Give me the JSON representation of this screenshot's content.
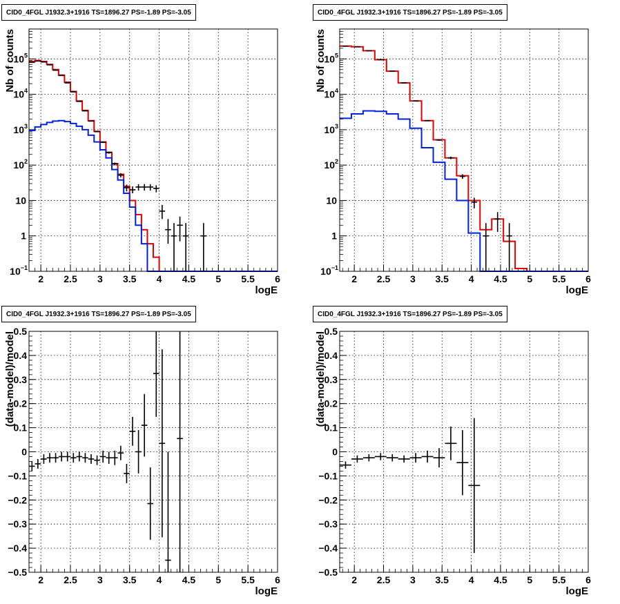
{
  "chart_data": [
    {
      "type": "line",
      "title": "CID0_4FGL J1932.3+1916 TS=1896.27 PS=-1.89 PS=-3.05",
      "xlabel": "logE",
      "ylabel": "Nb of counts",
      "xlim": [
        1.8,
        6.0
      ],
      "ylim": [
        0.1,
        700000
      ],
      "yscale": "log",
      "grid": true,
      "x_ticks": [
        "2",
        "2.5",
        "3",
        "3.5",
        "4",
        "4.5",
        "5",
        "5.5",
        "6"
      ],
      "y_ticks": [
        {
          "value": 0.1,
          "label": "10",
          "sup": "−1"
        },
        {
          "value": 1,
          "label": "1",
          "sup": ""
        },
        {
          "value": 10,
          "label": "10",
          "sup": ""
        },
        {
          "value": 100,
          "label": "10",
          "sup": "2"
        },
        {
          "value": 1000,
          "label": "10",
          "sup": "3"
        },
        {
          "value": 10000,
          "label": "10",
          "sup": "4"
        },
        {
          "value": 100000,
          "label": "10",
          "sup": "5"
        }
      ],
      "bin_edges": [
        1.8,
        1.9,
        2.0,
        2.1,
        2.2,
        2.3,
        2.4,
        2.5,
        2.6,
        2.7,
        2.8,
        2.9,
        3.0,
        3.1,
        3.2,
        3.3,
        3.4,
        3.5,
        3.6,
        3.7,
        3.8,
        3.9,
        4.0,
        4.1,
        4.2,
        4.3,
        4.4,
        4.5,
        4.6,
        4.7,
        4.8,
        4.9,
        5.0,
        5.1,
        5.2,
        5.3,
        5.4,
        5.5,
        5.6,
        5.7,
        5.8,
        5.9,
        6.0
      ],
      "series": [
        {
          "color": "#e00000",
          "style": "step",
          "values": [
            85000,
            90000,
            85000,
            70000,
            50000,
            35000,
            22000,
            12000,
            6500,
            3500,
            1800,
            900,
            450,
            230,
            110,
            55,
            25,
            10,
            4,
            1.5,
            0.6,
            0.25,
            0.1,
            0.1,
            0.1,
            0.1,
            0.1,
            0.1,
            0.1,
            0.1,
            0.1,
            0.1,
            0.1,
            0.1,
            0.1,
            0.1,
            0.1,
            0.1,
            0.1,
            0.1,
            0.1,
            0.1
          ]
        },
        {
          "color": "#0020e0",
          "style": "step",
          "values": [
            950,
            1200,
            1400,
            1600,
            1750,
            1800,
            1700,
            1500,
            1250,
            1000,
            700,
            450,
            270,
            160,
            75,
            38,
            16,
            6.5,
            2,
            0.6,
            0.1,
            0.1,
            0.1,
            0.1,
            0.1,
            0.1,
            0.1,
            0.1,
            0.1,
            0.1,
            0.1,
            0.1,
            0.1,
            0.1,
            0.1,
            0.1,
            0.1,
            0.1,
            0.1,
            0.1,
            0.1,
            0.1
          ]
        }
      ],
      "data_points": [
        {
          "x": 1.85,
          "y": 80000,
          "lo": 79700,
          "hi": 80300
        },
        {
          "x": 1.95,
          "y": 87000,
          "lo": 86700,
          "hi": 87300
        },
        {
          "x": 2.05,
          "y": 82000,
          "lo": 81700,
          "hi": 82300
        },
        {
          "x": 2.15,
          "y": 68000,
          "lo": 67700,
          "hi": 68300
        },
        {
          "x": 2.25,
          "y": 48000,
          "lo": 47800,
          "hi": 48200
        },
        {
          "x": 2.35,
          "y": 34000,
          "lo": 33800,
          "hi": 34200
        },
        {
          "x": 2.45,
          "y": 21000,
          "lo": 20850,
          "hi": 21150
        },
        {
          "x": 2.55,
          "y": 11700,
          "lo": 11600,
          "hi": 11800
        },
        {
          "x": 2.65,
          "y": 6300,
          "lo": 6220,
          "hi": 6380
        },
        {
          "x": 2.75,
          "y": 3400,
          "lo": 3340,
          "hi": 3460
        },
        {
          "x": 2.85,
          "y": 1750,
          "lo": 1710,
          "hi": 1790
        },
        {
          "x": 2.95,
          "y": 880,
          "lo": 850,
          "hi": 910
        },
        {
          "x": 3.05,
          "y": 440,
          "lo": 420,
          "hi": 460
        },
        {
          "x": 3.15,
          "y": 225,
          "lo": 210,
          "hi": 240
        },
        {
          "x": 3.25,
          "y": 108,
          "lo": 98,
          "hi": 118
        },
        {
          "x": 3.35,
          "y": 52,
          "lo": 45,
          "hi": 59
        },
        {
          "x": 3.45,
          "y": 23,
          "lo": 18,
          "hi": 28
        },
        {
          "x": 3.55,
          "y": 20,
          "lo": 16,
          "hi": 25
        },
        {
          "x": 3.65,
          "y": 24,
          "lo": 19,
          "hi": 29
        },
        {
          "x": 3.75,
          "y": 24,
          "lo": 19,
          "hi": 29
        },
        {
          "x": 3.85,
          "y": 24,
          "lo": 19,
          "hi": 29
        },
        {
          "x": 3.95,
          "y": 22,
          "lo": 17,
          "hi": 27
        },
        {
          "x": 4.05,
          "y": 5,
          "lo": 3,
          "hi": 7.5
        },
        {
          "x": 4.15,
          "y": 1.5,
          "lo": 0.6,
          "hi": 3
        },
        {
          "x": 4.25,
          "y": 1,
          "lo": 0.1,
          "hi": 2.3
        },
        {
          "x": 4.35,
          "y": 2,
          "lo": 0.7,
          "hi": 3.5
        },
        {
          "x": 4.45,
          "y": 1,
          "lo": 0.1,
          "hi": 2.3
        },
        {
          "x": 4.75,
          "y": 1,
          "lo": 0.1,
          "hi": 2.3
        }
      ]
    },
    {
      "type": "line",
      "title": "CID0_4FGL J1932.3+1916 TS=1896.27 PS=-1.89 PS=-3.05",
      "xlabel": "logE",
      "ylabel": "Nb of counts",
      "xlim": [
        1.75,
        6.0
      ],
      "ylim": [
        0.1,
        700000
      ],
      "yscale": "log",
      "grid": true,
      "x_ticks": [
        "2",
        "2.5",
        "3",
        "3.5",
        "4",
        "4.5",
        "5",
        "5.5",
        "6"
      ],
      "y_ticks": [
        {
          "value": 0.1,
          "label": "10",
          "sup": "−1"
        },
        {
          "value": 1,
          "label": "1",
          "sup": ""
        },
        {
          "value": 10,
          "label": "10",
          "sup": ""
        },
        {
          "value": 100,
          "label": "10",
          "sup": "2"
        },
        {
          "value": 1000,
          "label": "10",
          "sup": "3"
        },
        {
          "value": 10000,
          "label": "10",
          "sup": "4"
        },
        {
          "value": 100000,
          "label": "10",
          "sup": "5"
        }
      ],
      "bin_edges": [
        1.75,
        1.95,
        2.15,
        2.35,
        2.55,
        2.75,
        2.95,
        3.15,
        3.35,
        3.55,
        3.75,
        3.95,
        4.15,
        4.35,
        4.55,
        4.75,
        4.95,
        5.15,
        5.35,
        5.55,
        5.75,
        6.0
      ],
      "series": [
        {
          "color": "#e00000",
          "style": "step",
          "values": [
            230000,
            220000,
            170000,
            95000,
            45000,
            21000,
            6500,
            1800,
            520,
            160,
            50,
            10,
            1.5,
            3,
            0.7,
            0.12,
            0.1,
            0.1,
            0.1,
            0.1,
            0.1
          ]
        },
        {
          "color": "#0020e0",
          "style": "step",
          "values": [
            2100,
            2800,
            3400,
            3300,
            2800,
            2000,
            1100,
            310,
            120,
            40,
            10,
            1.2,
            0.1,
            0.1,
            0.1,
            0.1,
            0.1,
            0.1,
            0.1,
            0.1,
            0.1
          ]
        }
      ],
      "data_points": [
        {
          "x": 1.85,
          "y": 230000,
          "lo": 229500,
          "hi": 230500
        },
        {
          "x": 2.05,
          "y": 220000,
          "lo": 219500,
          "hi": 220500
        },
        {
          "x": 2.25,
          "y": 170000,
          "lo": 169500,
          "hi": 170500
        },
        {
          "x": 2.45,
          "y": 95000,
          "lo": 94700,
          "hi": 95300
        },
        {
          "x": 2.65,
          "y": 45000,
          "lo": 44800,
          "hi": 45200
        },
        {
          "x": 2.85,
          "y": 21000,
          "lo": 20850,
          "hi": 21150
        },
        {
          "x": 3.05,
          "y": 6500,
          "lo": 6420,
          "hi": 6580
        },
        {
          "x": 3.25,
          "y": 1800,
          "lo": 1760,
          "hi": 1840
        },
        {
          "x": 3.45,
          "y": 510,
          "lo": 487,
          "hi": 533
        },
        {
          "x": 3.65,
          "y": 160,
          "lo": 147,
          "hi": 173
        },
        {
          "x": 3.85,
          "y": 48,
          "lo": 41,
          "hi": 55
        },
        {
          "x": 4.05,
          "y": 9,
          "lo": 6,
          "hi": 12
        },
        {
          "x": 4.25,
          "y": 1,
          "lo": 0.1,
          "hi": 2.3
        },
        {
          "x": 4.45,
          "y": 3,
          "lo": 1.3,
          "hi": 4.7
        },
        {
          "x": 4.65,
          "y": 1,
          "lo": 0.1,
          "hi": 2.3
        }
      ]
    },
    {
      "type": "scatter",
      "title": "CID0_4FGL J1932.3+1916 TS=1896.27 PS=-1.89 PS=-3.05",
      "xlabel": "logE",
      "ylabel": "(data-model)/model",
      "xlim": [
        1.8,
        6.0
      ],
      "ylim": [
        -0.5,
        0.5
      ],
      "grid": true,
      "x_ticks": [
        "2",
        "2.5",
        "3",
        "3.5",
        "4",
        "4.5",
        "5",
        "5.5",
        "6"
      ],
      "y_ticks": [
        "−0.5",
        "−0.4",
        "−0.3",
        "−0.2",
        "−0.1",
        "0",
        "0.1",
        "0.2",
        "0.3",
        "0.4",
        "0.5"
      ],
      "points": [
        {
          "x": 1.85,
          "y": -0.06,
          "err": 0.02,
          "xerr": 0.05
        },
        {
          "x": 1.95,
          "y": -0.05,
          "err": 0.02,
          "xerr": 0.05
        },
        {
          "x": 2.05,
          "y": -0.03,
          "err": 0.02,
          "xerr": 0.05
        },
        {
          "x": 2.15,
          "y": -0.025,
          "err": 0.02,
          "xerr": 0.05
        },
        {
          "x": 2.25,
          "y": -0.025,
          "err": 0.02,
          "xerr": 0.05
        },
        {
          "x": 2.35,
          "y": -0.02,
          "err": 0.02,
          "xerr": 0.05
        },
        {
          "x": 2.45,
          "y": -0.02,
          "err": 0.02,
          "xerr": 0.05
        },
        {
          "x": 2.55,
          "y": -0.025,
          "err": 0.02,
          "xerr": 0.05
        },
        {
          "x": 2.65,
          "y": -0.02,
          "err": 0.02,
          "xerr": 0.05
        },
        {
          "x": 2.75,
          "y": -0.025,
          "err": 0.02,
          "xerr": 0.05
        },
        {
          "x": 2.85,
          "y": -0.03,
          "err": 0.02,
          "xerr": 0.05
        },
        {
          "x": 2.95,
          "y": -0.035,
          "err": 0.02,
          "xerr": 0.05
        },
        {
          "x": 3.05,
          "y": -0.02,
          "err": 0.025,
          "xerr": 0.05
        },
        {
          "x": 3.15,
          "y": -0.025,
          "err": 0.025,
          "xerr": 0.05
        },
        {
          "x": 3.25,
          "y": -0.025,
          "err": 0.03,
          "xerr": 0.05
        },
        {
          "x": 3.35,
          "y": -0.005,
          "err": 0.03,
          "xerr": 0.05
        },
        {
          "x": 3.45,
          "y": -0.09,
          "err": 0.04,
          "xerr": 0.05
        },
        {
          "x": 3.55,
          "y": 0.085,
          "err": 0.06,
          "xerr": 0.05
        },
        {
          "x": 3.65,
          "y": 0.0,
          "err": 0.09,
          "xerr": 0.05
        },
        {
          "x": 3.75,
          "y": 0.11,
          "err": 0.13,
          "xerr": 0.05
        },
        {
          "x": 3.85,
          "y": -0.215,
          "err": 0.15,
          "xerr": 0.05
        },
        {
          "x": 3.95,
          "y": 0.325,
          "err": 0.18,
          "xerr": 0.05
        },
        {
          "x": 4.05,
          "y": 0.035,
          "err": 0.39,
          "xerr": 0.05
        },
        {
          "x": 4.15,
          "y": -0.45,
          "err": 0.45,
          "xerr": 0.05
        },
        {
          "x": 4.35,
          "y": 0.055,
          "err": 0.56,
          "xerr": 0.05
        }
      ]
    },
    {
      "type": "scatter",
      "title": "CID0_4FGL J1932.3+1916 TS=1896.27 PS=-1.89 PS=-3.05",
      "xlabel": "logE",
      "ylabel": "(data-model)/model",
      "xlim": [
        1.75,
        6.0
      ],
      "ylim": [
        -0.5,
        0.5
      ],
      "grid": true,
      "x_ticks": [
        "2",
        "2.5",
        "3",
        "3.5",
        "4",
        "4.5",
        "5",
        "5.5",
        "6"
      ],
      "y_ticks": [
        "−0.5",
        "−0.4",
        "−0.3",
        "−0.2",
        "−0.1",
        "0",
        "0.1",
        "0.2",
        "0.3",
        "0.4",
        "0.5"
      ],
      "points": [
        {
          "x": 1.85,
          "y": -0.055,
          "err": 0.015,
          "xerr": 0.1
        },
        {
          "x": 2.05,
          "y": -0.03,
          "err": 0.015,
          "xerr": 0.1
        },
        {
          "x": 2.25,
          "y": -0.025,
          "err": 0.015,
          "xerr": 0.1
        },
        {
          "x": 2.45,
          "y": -0.02,
          "err": 0.015,
          "xerr": 0.1
        },
        {
          "x": 2.65,
          "y": -0.025,
          "err": 0.015,
          "xerr": 0.1
        },
        {
          "x": 2.85,
          "y": -0.03,
          "err": 0.015,
          "xerr": 0.1
        },
        {
          "x": 3.05,
          "y": -0.025,
          "err": 0.02,
          "xerr": 0.1
        },
        {
          "x": 3.25,
          "y": -0.02,
          "err": 0.025,
          "xerr": 0.1
        },
        {
          "x": 3.45,
          "y": -0.025,
          "err": 0.04,
          "xerr": 0.1
        },
        {
          "x": 3.65,
          "y": 0.035,
          "err": 0.07,
          "xerr": 0.1
        },
        {
          "x": 3.85,
          "y": -0.045,
          "err": 0.135,
          "xerr": 0.1
        },
        {
          "x": 4.05,
          "y": -0.14,
          "err": 0.28,
          "xerr": 0.1
        }
      ]
    }
  ]
}
